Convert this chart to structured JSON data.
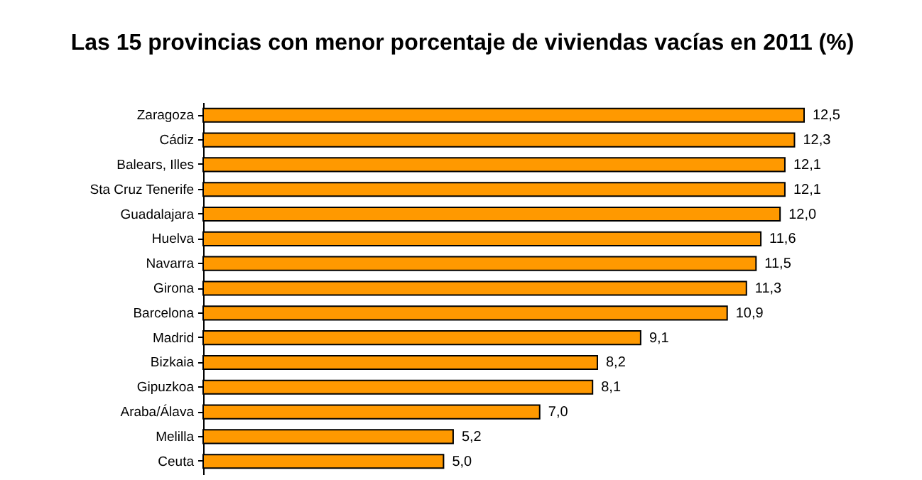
{
  "chart_data": {
    "type": "bar",
    "orientation": "horizontal",
    "title": "Las 15 provincias con menor porcentaje de viviendas vacías en 2011 (%)",
    "categories": [
      "Zaragoza",
      "Cádiz",
      "Balears, Illes",
      "Sta Cruz Tenerife",
      "Guadalajara",
      "Huelva",
      "Navarra",
      "Girona",
      "Barcelona",
      "Madrid",
      "Bizkaia",
      "Gipuzkoa",
      "Araba/Álava",
      "Melilla",
      "Ceuta"
    ],
    "values": [
      12.5,
      12.3,
      12.1,
      12.1,
      12.0,
      11.6,
      11.5,
      11.3,
      10.9,
      9.1,
      8.2,
      8.1,
      7.0,
      5.2,
      5.0
    ],
    "value_labels": [
      "12,5",
      "12,3",
      "12,1",
      "12,1",
      "12,0",
      "11,6",
      "11,5",
      "11,3",
      "10,9",
      "9,1",
      "8,2",
      "8,1",
      "7,0",
      "5,2",
      "5,0"
    ],
    "color": "#ff9900"
  }
}
